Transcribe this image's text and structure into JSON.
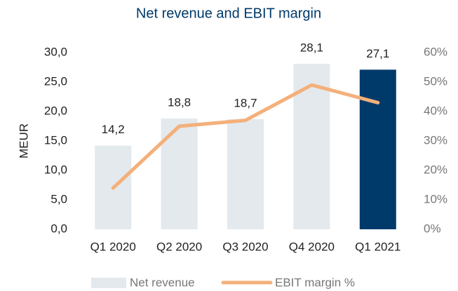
{
  "chart_data": {
    "type": "bar",
    "title": "Net revenue and EBIT margin",
    "ylabel": "MEUR",
    "categories": [
      "Q1 2020",
      "Q2 2020",
      "Q3 2020",
      "Q4 2020",
      "Q1 2021"
    ],
    "series": [
      {
        "name": "Net revenue",
        "type": "bar",
        "color": "#e3e9ed",
        "colors": [
          "#e3e9ed",
          "#e3e9ed",
          "#e3e9ed",
          "#e3e9ed",
          "#003a6b"
        ],
        "values": [
          14.2,
          18.8,
          18.7,
          28.1,
          27.1
        ],
        "value_labels": [
          "14,2",
          "18,8",
          "18,7",
          "28,1",
          "27,1"
        ]
      },
      {
        "name": "EBIT margin %",
        "type": "line",
        "axis": "y2",
        "color": "#f4b07a",
        "values": [
          14,
          35,
          37,
          49,
          43
        ]
      }
    ],
    "ylim": [
      0,
      30
    ],
    "yticks": [
      {
        "value": 0,
        "label": "0,0"
      },
      {
        "value": 5,
        "label": "5,0"
      },
      {
        "value": 10,
        "label": "10,0"
      },
      {
        "value": 15,
        "label": "15,0"
      },
      {
        "value": 20,
        "label": "20,0"
      },
      {
        "value": 25,
        "label": "25,0"
      },
      {
        "value": 30,
        "label": "30,0"
      }
    ],
    "y2lim": [
      0,
      60
    ],
    "y2ticks": [
      {
        "value": 0,
        "label": "0%"
      },
      {
        "value": 10,
        "label": "10%"
      },
      {
        "value": 20,
        "label": "20%"
      },
      {
        "value": 30,
        "label": "30%"
      },
      {
        "value": 40,
        "label": "40%"
      },
      {
        "value": 50,
        "label": "50%"
      },
      {
        "value": 60,
        "label": "60%"
      }
    ],
    "grid": false,
    "legend": "bottom"
  }
}
